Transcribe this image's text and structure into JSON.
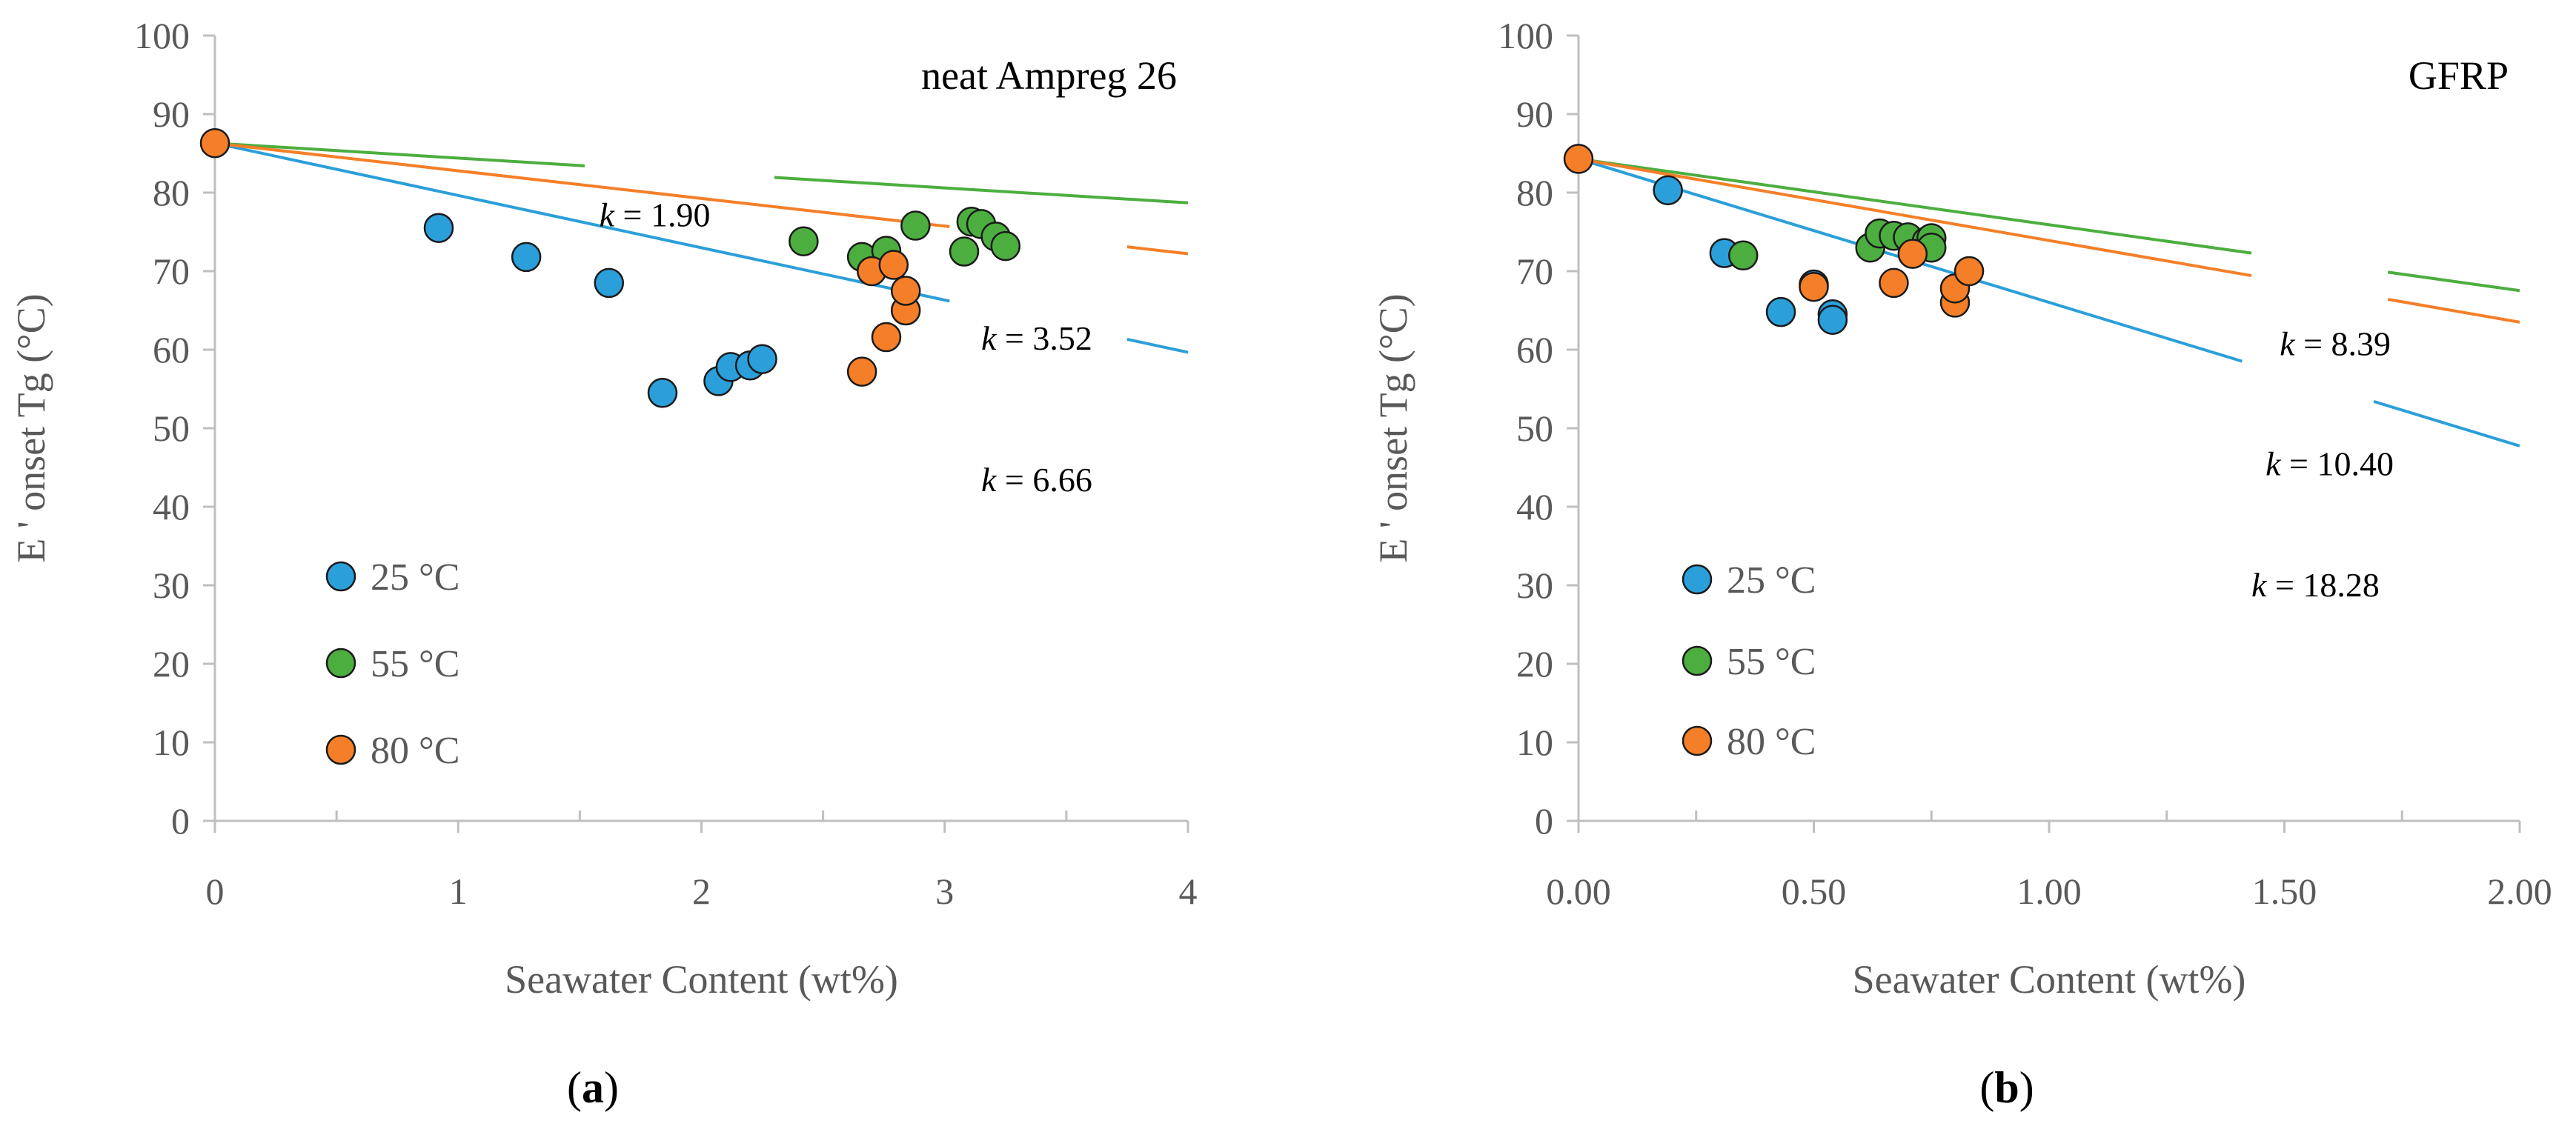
{
  "chart_data": [
    {
      "type": "scatter",
      "title": "neat Ampreg 26",
      "xlabel": "Seawater Content (wt%)",
      "ylabel": "E ' onset Tg (°C)",
      "caption_letter": "a",
      "xlim": [
        0,
        4
      ],
      "ylim": [
        0,
        100
      ],
      "xticks": [
        0,
        1,
        2,
        3,
        4
      ],
      "xtick_labels": [
        "0",
        "1",
        "2",
        "3",
        "4"
      ],
      "yticks": [
        0,
        10,
        20,
        30,
        40,
        50,
        60,
        70,
        80,
        90,
        100
      ],
      "ytick_labels": [
        "0",
        "10",
        "20",
        "30",
        "40",
        "50",
        "60",
        "70",
        "80",
        "90",
        "100"
      ],
      "legend_position": "bottom-left",
      "series": [
        {
          "name": "25 °C",
          "color": "#2b9fd9",
          "points": [
            [
              0.92,
              75.5
            ],
            [
              1.28,
              71.8
            ],
            [
              1.62,
              68.5
            ],
            [
              1.84,
              54.5
            ],
            [
              2.07,
              56.0
            ],
            [
              2.12,
              57.8
            ],
            [
              2.2,
              58.0
            ],
            [
              2.25,
              58.8
            ]
          ],
          "fit": {
            "y0": 86.3,
            "k_label": "6.66",
            "label_x": 3.15,
            "label_y": 43.5,
            "gap": [
              3.02,
              3.75
            ]
          }
        },
        {
          "name": "55 °C",
          "color": "#4cae3f",
          "points": [
            [
              2.42,
              73.8
            ],
            [
              2.66,
              71.8
            ],
            [
              2.76,
              72.6
            ],
            [
              2.88,
              75.8
            ],
            [
              3.08,
              72.5
            ],
            [
              3.11,
              76.3
            ],
            [
              3.15,
              76.0
            ],
            [
              3.21,
              74.4
            ],
            [
              3.25,
              73.2
            ]
          ],
          "fit": {
            "y0": 86.3,
            "k_label": "1.90",
            "label_x": 1.58,
            "label_y": 77.2,
            "gap": [
              1.52,
              2.3
            ]
          }
        },
        {
          "name": "80 °C",
          "color": "#f47f28",
          "points": [
            [
              2.66,
              57.2
            ],
            [
              2.7,
              70.0
            ],
            [
              2.76,
              61.6
            ],
            [
              2.79,
              70.8
            ],
            [
              2.84,
              65.0
            ],
            [
              2.84,
              67.5
            ]
          ],
          "fit": {
            "y0": 86.3,
            "k_label": "3.52",
            "label_x": 3.15,
            "label_y": 61.5,
            "gap": [
              3.02,
              3.75
            ]
          }
        }
      ],
      "shared_point": [
        0,
        86.3
      ]
    },
    {
      "type": "scatter",
      "title": "GFRP",
      "xlabel": "Seawater Content (wt%)",
      "ylabel": "E ' onset Tg (°C)",
      "caption_letter": "b",
      "xlim": [
        0,
        2
      ],
      "ylim": [
        0,
        100
      ],
      "xticks": [
        0,
        0.5,
        1,
        1.5,
        2
      ],
      "xtick_labels": [
        "0.00",
        "0.50",
        "1.00",
        "1.50",
        "2.00"
      ],
      "yticks": [
        0,
        10,
        20,
        30,
        40,
        50,
        60,
        70,
        80,
        90,
        100
      ],
      "ytick_labels": [
        "0",
        "10",
        "20",
        "30",
        "40",
        "50",
        "60",
        "70",
        "80",
        "90",
        "100"
      ],
      "legend_position": "bottom-left",
      "series": [
        {
          "name": "25 °C",
          "color": "#2b9fd9",
          "points": [
            [
              0.19,
              80.3
            ],
            [
              0.31,
              72.3
            ],
            [
              0.43,
              64.8
            ],
            [
              0.5,
              68.3
            ],
            [
              0.54,
              64.5
            ],
            [
              0.54,
              63.8
            ]
          ],
          "fit": {
            "y0": 84.3,
            "k_label": "18.28",
            "label_x": 1.43,
            "label_y": 30.1,
            "gap": [
              1.41,
              1.69
            ]
          }
        },
        {
          "name": "55 °C",
          "color": "#4cae3f",
          "points": [
            [
              0.35,
              72.0
            ],
            [
              0.62,
              73.0
            ],
            [
              0.64,
              74.8
            ],
            [
              0.67,
              74.5
            ],
            [
              0.7,
              74.3
            ],
            [
              0.74,
              73.8
            ],
            [
              0.75,
              74.2
            ],
            [
              0.75,
              73.0
            ]
          ],
          "fit": {
            "y0": 84.3,
            "k_label": "8.39",
            "label_x": 1.49,
            "label_y": 60.8,
            "gap": [
              1.43,
              1.72
            ]
          }
        },
        {
          "name": "80 °C",
          "color": "#f47f28",
          "points": [
            [
              0.5,
              68.0
            ],
            [
              0.67,
              68.5
            ],
            [
              0.71,
              72.2
            ],
            [
              0.8,
              66.0
            ],
            [
              0.8,
              67.8
            ],
            [
              0.83,
              70.0
            ]
          ],
          "fit": {
            "y0": 84.3,
            "k_label": "10.40",
            "label_x": 1.46,
            "label_y": 45.5,
            "gap": [
              1.43,
              1.72
            ]
          }
        }
      ],
      "shared_point": [
        0,
        84.3
      ]
    }
  ]
}
